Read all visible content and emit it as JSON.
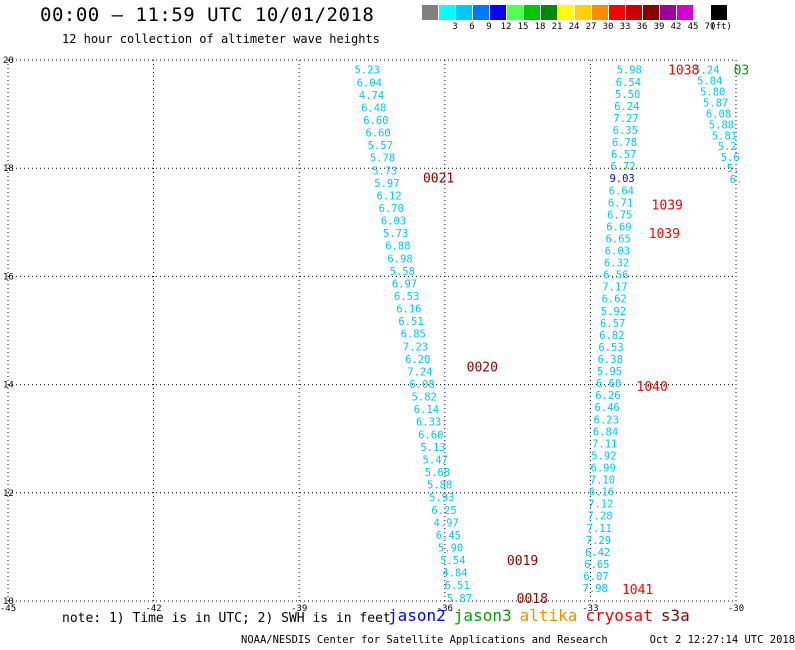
{
  "header": {
    "title": "00:00 – 11:59 UTC 10/01/2018",
    "subtitle": "12 hour collection of altimeter wave heights"
  },
  "legend": {
    "unit_label": "(ft)",
    "entries": [
      {
        "label": "",
        "color": "#808080"
      },
      {
        "label": "3",
        "color": "#00ffff"
      },
      {
        "label": "6",
        "color": "#00c8ff"
      },
      {
        "label": "9",
        "color": "#0078ff"
      },
      {
        "label": "12",
        "color": "#0000ff"
      },
      {
        "label": "15",
        "color": "#50ff50"
      },
      {
        "label": "18",
        "color": "#00c800"
      },
      {
        "label": "21",
        "color": "#008c00"
      },
      {
        "label": "24",
        "color": "#ffff00"
      },
      {
        "label": "27",
        "color": "#ffd200"
      },
      {
        "label": "30",
        "color": "#ff8c00"
      },
      {
        "label": "33",
        "color": "#ff0000"
      },
      {
        "label": "36",
        "color": "#c80000"
      },
      {
        "label": "39",
        "color": "#8c0000"
      },
      {
        "label": "42",
        "color": "#a000a0"
      },
      {
        "label": "45",
        "color": "#d200d2"
      },
      {
        "label": "70",
        "color": "#ffffff"
      },
      {
        "label": "",
        "color": "#000000"
      }
    ]
  },
  "notes": {
    "note": "note: 1) Time is in UTC; 2) SWH is in feet"
  },
  "satellites": [
    {
      "name": "jason2",
      "color": "#0000ff"
    },
    {
      "name": "jason3",
      "color": "#00a000"
    },
    {
      "name": "altika",
      "color": "#ff8c00"
    },
    {
      "name": "cryosat",
      "color": "#ff0000"
    },
    {
      "name": "s3a",
      "color": "#8c0000"
    }
  ],
  "footer": {
    "credit": "NOAA/NESDIS Center for Satellite Applications and Research",
    "timestamp": "Oct  2 12:27:14 UTC 2018"
  },
  "chart_data": {
    "type": "scatter",
    "xlim": [
      -45,
      -30
    ],
    "ylim": [
      10,
      20
    ],
    "x_ticks": [
      "-45",
      "-42",
      "-39",
      "-36",
      "-33",
      "-30"
    ],
    "y_ticks": [
      "10",
      "12",
      "14",
      "16",
      "18",
      "20"
    ],
    "grid": true,
    "point_color": "#00c8ff",
    "label_color": "#8c0000",
    "tracks": [
      {
        "name": "track-west",
        "x_start": -37.6,
        "x_end": -35.7,
        "y_start": 19.82,
        "y_end": 10.06,
        "values": [
          "5.23",
          "6.04",
          "4.74",
          "6.48",
          "6.60",
          "6.60",
          "5.57",
          "5.78",
          "5.73",
          "5.97",
          "6.12",
          "6.70",
          "6.03",
          "5.73",
          "6.88",
          "6.98",
          "5.58",
          "6.97",
          "6.53",
          "6.16",
          "6.51",
          "6.85",
          "7.23",
          "6.20",
          "7.24",
          "6.08",
          "5.82",
          "6.14",
          "6.33",
          "6.60",
          "5.13",
          "5.47",
          "5.68",
          "5.88",
          "5.93",
          "6.25",
          "4.97",
          "6.45",
          "5.90",
          "5.54",
          "4.84",
          "6.51",
          "5.87"
        ]
      },
      {
        "name": "track-east",
        "x_start": -32.2,
        "x_end": -32.9,
        "y_start": 19.82,
        "y_end": 10.24,
        "values": [
          "5.98",
          "6.54",
          "5.50",
          "6.24",
          "7.27",
          "6.35",
          "6.78",
          "6.57",
          "6.72",
          "9.03",
          "6.64",
          "6.71",
          "6.75",
          "6.69",
          "6.65",
          "6.03",
          "6.32",
          "6.56",
          "7.17",
          "6.62",
          "5.92",
          "6.57",
          "6.82",
          "6.53",
          "6.38",
          "5.95",
          "6.60",
          "6.26",
          "6.46",
          "6.23",
          "6.84",
          "7.11",
          "5.92",
          "6.99",
          "7.10",
          "6.16",
          "7.12",
          "7.28",
          "7.11",
          "7.29",
          "6.42",
          "6.65",
          "6.07",
          "7.98"
        ]
      },
      {
        "name": "track-far-east",
        "x_start": -30.6,
        "x_end": -30.0,
        "y_start": 19.82,
        "y_end": 17.8,
        "values": [
          "5.24",
          "5.04",
          "5.80",
          "5.87",
          "6.08",
          "5.88",
          "5.81",
          "5.2",
          "5.6",
          "5.",
          "6."
        ]
      }
    ],
    "pass_labels": [
      {
        "text": "0021",
        "x": -36.45,
        "y": 17.83
      },
      {
        "text": "0020",
        "x": -35.55,
        "y": 14.33
      },
      {
        "text": "0019",
        "x": -34.72,
        "y": 10.76
      },
      {
        "text": "0018",
        "x": -34.52,
        "y": 10.06
      },
      {
        "text": "1038",
        "x": -31.4,
        "y": 19.82
      },
      {
        "text": "1039",
        "x": -31.74,
        "y": 17.33
      },
      {
        "text": "1039",
        "x": -31.8,
        "y": 16.8
      },
      {
        "text": "1040",
        "x": -32.05,
        "y": 13.97
      },
      {
        "text": "1041",
        "x": -32.35,
        "y": 10.22
      },
      {
        "text": "03",
        "x": -30.05,
        "y": 19.82
      }
    ]
  }
}
